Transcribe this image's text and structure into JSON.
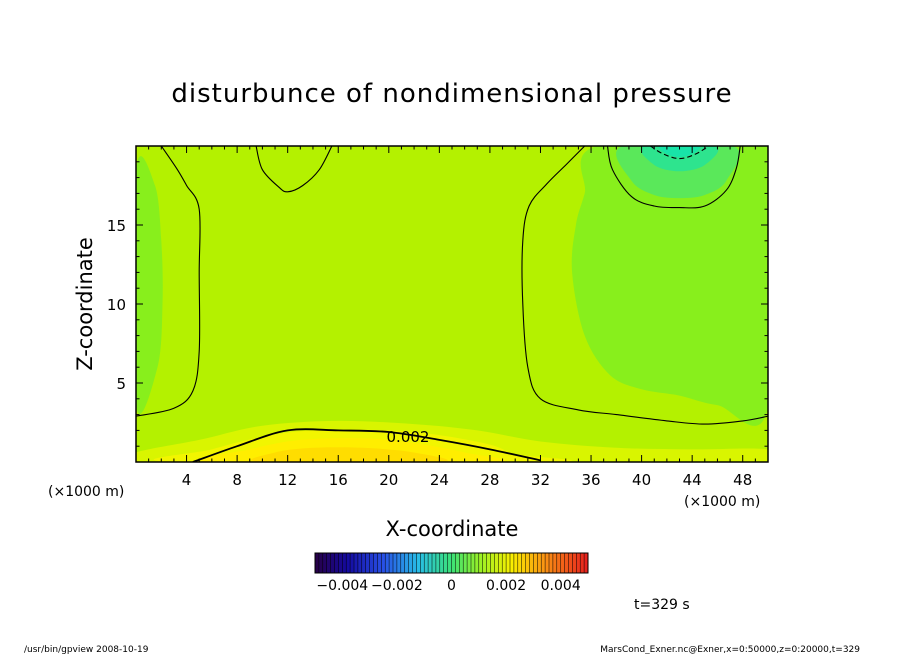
{
  "chart_data": {
    "type": "heatmap",
    "title": "disturbunce of nondimensional pressure",
    "xlabel": "X-coordinate",
    "ylabel": "Z-coordinate",
    "x_unit": "(×1000 m)",
    "xlim": [
      0,
      50
    ],
    "ylim": [
      0,
      20
    ],
    "x_ticks": [
      4,
      8,
      12,
      16,
      20,
      24,
      28,
      32,
      36,
      40,
      44,
      48
    ],
    "y_ticks": [
      5,
      10,
      15
    ],
    "grid": false,
    "colorbar": {
      "range": [
        -0.005,
        0.005
      ],
      "tick_values": [
        -0.004,
        -0.002,
        0,
        0.002,
        0.004
      ],
      "tick_labels": [
        "−0.004",
        "−0.002",
        "0",
        "0.002",
        "0.004"
      ]
    },
    "contour_label": "0.002",
    "contours": [
      {
        "level": 0.002,
        "style": "solid",
        "points": [
          [
            4.5,
            0
          ],
          [
            8,
            1
          ],
          [
            12,
            2
          ],
          [
            16,
            2
          ],
          [
            20,
            1.9
          ],
          [
            24,
            1.4
          ],
          [
            28,
            0.8
          ],
          [
            32,
            0.1
          ]
        ]
      },
      {
        "level": 0.0015,
        "style": "solid",
        "points": [
          [
            0,
            2.9
          ],
          [
            3,
            3.4
          ],
          [
            4.5,
            4.5
          ],
          [
            5,
            7
          ],
          [
            5,
            12
          ],
          [
            5,
            16
          ],
          [
            4,
            17.5
          ],
          [
            3.2,
            18.6
          ],
          [
            2,
            20
          ]
        ]
      },
      {
        "level": 0.0015,
        "style": "solid",
        "points": [
          [
            9.5,
            20
          ],
          [
            10,
            18.5
          ],
          [
            11.3,
            17.4
          ],
          [
            12,
            17.1
          ],
          [
            13.2,
            17.5
          ],
          [
            14.5,
            18.5
          ],
          [
            15.5,
            20
          ]
        ]
      },
      {
        "level": 0.0015,
        "style": "solid",
        "points": [
          [
            50,
            2.9
          ],
          [
            48,
            2.6
          ],
          [
            45,
            2.4
          ],
          [
            42,
            2.6
          ],
          [
            38,
            3
          ],
          [
            35,
            3.3
          ],
          [
            32,
            4
          ],
          [
            31,
            6
          ],
          [
            30.6,
            10
          ],
          [
            30.6,
            14
          ],
          [
            31.1,
            16.2
          ],
          [
            32.5,
            17.6
          ],
          [
            34,
            18.8
          ],
          [
            35.5,
            20
          ]
        ]
      },
      {
        "level": 0.001,
        "style": "solid",
        "points": [
          [
            37.3,
            20
          ],
          [
            37.7,
            18.5
          ],
          [
            39.2,
            16.8
          ],
          [
            41,
            16.2
          ],
          [
            43,
            16.1
          ],
          [
            45,
            16.2
          ],
          [
            46.7,
            17.2
          ],
          [
            47.5,
            18.6
          ],
          [
            47.8,
            20
          ]
        ]
      },
      {
        "level": 0.0005,
        "style": "dashed",
        "points": [
          [
            40.7,
            20
          ],
          [
            41.7,
            19.5
          ],
          [
            43,
            19.2
          ],
          [
            44.3,
            19.5
          ],
          [
            45.3,
            20
          ]
        ]
      }
    ],
    "field_regions": [
      {
        "level": 0.0034,
        "color": "#ffdd00",
        "points": [
          [
            10,
            0
          ],
          [
            11,
            0.6
          ],
          [
            14,
            0.9
          ],
          [
            18,
            0.9
          ],
          [
            22,
            0.6
          ],
          [
            24,
            0
          ]
        ]
      },
      {
        "level": 0.003,
        "color": "#ffee00",
        "points": [
          [
            6,
            0
          ],
          [
            9,
            0.8
          ],
          [
            13,
            1.4
          ],
          [
            18,
            1.5
          ],
          [
            22,
            1.2
          ],
          [
            26,
            0.6
          ],
          [
            28,
            0
          ]
        ]
      },
      {
        "level": 0.0026,
        "color": "#f2f500",
        "points": [
          [
            3,
            0
          ],
          [
            6,
            0.8
          ],
          [
            10,
            1.6
          ],
          [
            14,
            2
          ],
          [
            20,
            2
          ],
          [
            24,
            1.7
          ],
          [
            28,
            1.1
          ],
          [
            30,
            0.5
          ],
          [
            33,
            0
          ]
        ]
      },
      {
        "level": 0.0022,
        "color": "#d9f500",
        "points": [
          [
            0,
            0
          ],
          [
            0,
            0.6
          ],
          [
            5,
            1.4
          ],
          [
            10,
            2.3
          ],
          [
            16,
            2.6
          ],
          [
            22,
            2.4
          ],
          [
            27,
            2
          ],
          [
            32,
            1.3
          ],
          [
            38,
            0.9
          ],
          [
            44,
            0.8
          ],
          [
            50,
            0.8
          ],
          [
            50,
            0
          ]
        ]
      },
      {
        "level": 0.0012,
        "color": "#88ef1c",
        "points": [
          [
            0,
            3.7
          ],
          [
            1.7,
            6
          ],
          [
            2.1,
            10
          ],
          [
            2,
            14
          ],
          [
            1.5,
            17.5
          ],
          [
            0,
            18.4
          ]
        ]
      },
      {
        "level": 0.0012,
        "color": "#88ef1c",
        "points": [
          [
            50,
            3.5
          ],
          [
            46,
            3.6
          ],
          [
            43,
            4.2
          ],
          [
            40,
            4.6
          ],
          [
            37.5,
            5.5
          ],
          [
            35.5,
            8
          ],
          [
            34.5,
            12
          ],
          [
            34.8,
            15
          ],
          [
            35.5,
            17
          ],
          [
            36.5,
            20
          ],
          [
            50,
            20
          ]
        ]
      },
      {
        "level": 0.0008,
        "color": "#5ae85a",
        "points": [
          [
            38.5,
            20
          ],
          [
            39.2,
            17.8
          ],
          [
            41,
            16.9
          ],
          [
            43,
            16.7
          ],
          [
            45,
            16.9
          ],
          [
            46.7,
            17.8
          ],
          [
            47.2,
            20
          ]
        ]
      },
      {
        "level": 0.0004,
        "color": "#2ee48e",
        "points": [
          [
            40.2,
            20
          ],
          [
            41,
            18.8
          ],
          [
            43,
            18.4
          ],
          [
            45,
            18.8
          ],
          [
            45.8,
            20
          ]
        ]
      },
      {
        "level": 0.0001,
        "color": "#18e4a8",
        "points": [
          [
            41.5,
            20
          ],
          [
            42,
            19.5
          ],
          [
            43,
            19.3
          ],
          [
            44,
            19.5
          ],
          [
            44.5,
            20
          ]
        ]
      }
    ],
    "background_color": "#b4f100",
    "annotation_time": "t=329 s"
  },
  "footer": {
    "left": "/usr/bin/gpview   2008-10-19",
    "right": "MarsCond_Exner.nc@Exner,x=0:50000,z=0:20000,t=329"
  }
}
